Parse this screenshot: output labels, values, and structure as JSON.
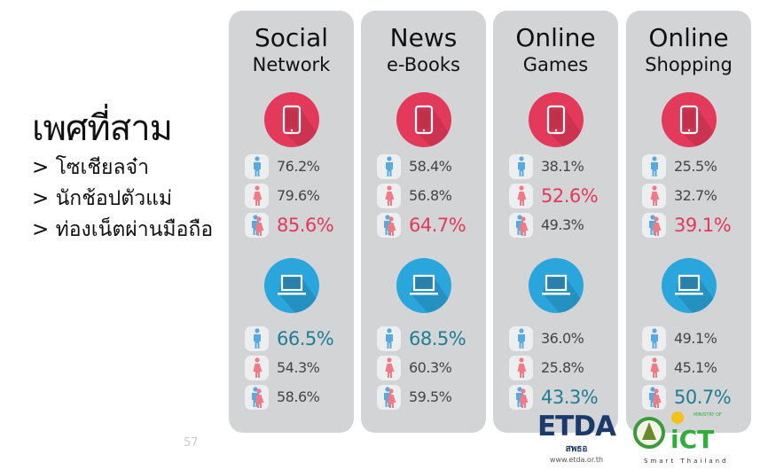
{
  "left": {
    "heading": "เพศที่สาม",
    "items": [
      "> โซเชียลจ๋า",
      "> นักช้อปตัวแม่",
      "> ท่องเน็ตผ่านมือถือ"
    ]
  },
  "colors": {
    "panel": "#d3d4d6",
    "mobile": "#e3395a",
    "laptop": "#2ba6dc",
    "male": "#5aa9de",
    "female": "#f07a86",
    "highlight_mobile": "#e3395a",
    "highlight_laptop": "#1f7d96"
  },
  "icons": {
    "mobile": "smartphone-icon",
    "laptop": "laptop-icon",
    "rows": [
      "male-icon",
      "female-icon",
      "third-gender-icon"
    ]
  },
  "panels": [
    {
      "title1": "Social",
      "title2": "Network",
      "mobile": [
        "76.2%",
        "79.6%",
        "85.6%"
      ],
      "mobile_hl": 2,
      "laptop": [
        "66.5%",
        "54.3%",
        "58.6%"
      ],
      "laptop_hl": 0
    },
    {
      "title1": "News",
      "title2": "e-Books",
      "mobile": [
        "58.4%",
        "56.8%",
        "64.7%"
      ],
      "mobile_hl": 2,
      "laptop": [
        "68.5%",
        "60.3%",
        "59.5%"
      ],
      "laptop_hl": 0
    },
    {
      "title1": "Online",
      "title2": "Games",
      "mobile": [
        "38.1%",
        "52.6%",
        "49.3%"
      ],
      "mobile_hl": 1,
      "laptop": [
        "36.0%",
        "25.8%",
        "43.3%"
      ],
      "laptop_hl": 2
    },
    {
      "title1": "Online",
      "title2": "Shopping",
      "mobile": [
        "25.5%",
        "32.7%",
        "39.1%"
      ],
      "mobile_hl": 2,
      "laptop": [
        "49.1%",
        "45.1%",
        "50.7%"
      ],
      "laptop_hl": 2
    }
  ],
  "page_number": "57",
  "logos": {
    "etda": "ETDA",
    "etda_thai": "สพธอ",
    "etda_url": "www.etda.or.th",
    "ict_top": "MINISTRY OF",
    "ict": "iCT",
    "ict_sub": "Smart Thailand"
  }
}
